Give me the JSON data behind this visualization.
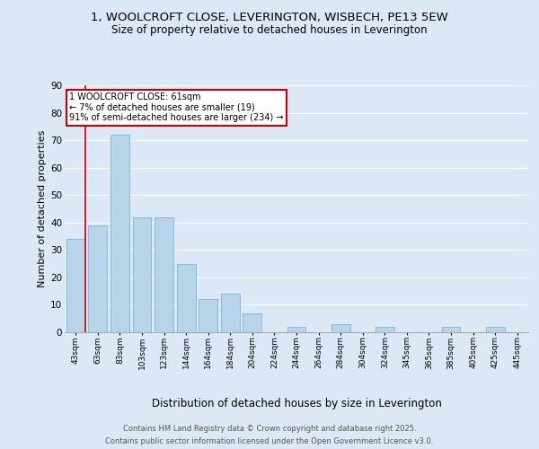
{
  "title_line1": "1, WOOLCROFT CLOSE, LEVERINGTON, WISBECH, PE13 5EW",
  "title_line2": "Size of property relative to detached houses in Leverington",
  "xlabel": "Distribution of detached houses by size in Leverington",
  "ylabel": "Number of detached properties",
  "categories": [
    "43sqm",
    "63sqm",
    "83sqm",
    "103sqm",
    "123sqm",
    "144sqm",
    "164sqm",
    "184sqm",
    "204sqm",
    "224sqm",
    "244sqm",
    "264sqm",
    "284sqm",
    "304sqm",
    "324sqm",
    "345sqm",
    "365sqm",
    "385sqm",
    "405sqm",
    "425sqm",
    "445sqm"
  ],
  "values": [
    34,
    39,
    72,
    42,
    42,
    25,
    12,
    14,
    7,
    0,
    2,
    0,
    3,
    0,
    2,
    0,
    0,
    2,
    0,
    2,
    0
  ],
  "bar_color": "#b8d4e8",
  "bar_edge_color": "#6aadd5",
  "annotation_text": "1 WOOLCROFT CLOSE: 61sqm\n← 7% of detached houses are smaller (19)\n91% of semi-detached houses are larger (234) →",
  "annotation_box_color": "#ffffff",
  "annotation_box_edge": "#cc0000",
  "footer_line1": "Contains HM Land Registry data © Crown copyright and database right 2025.",
  "footer_line2": "Contains public sector information licensed under the Open Government Licence v3.0.",
  "ylim": [
    0,
    90
  ],
  "background_color": "#dce8f5",
  "plot_bg_color": "#dce8f5",
  "grid_color": "#ffffff",
  "red_line_color": "#cc0000",
  "title_fontsize": 9.5,
  "subtitle_fontsize": 8.5,
  "tick_fontsize": 6.5,
  "ylabel_fontsize": 8,
  "xlabel_fontsize": 8.5,
  "footer_fontsize": 6,
  "annotation_fontsize": 7
}
